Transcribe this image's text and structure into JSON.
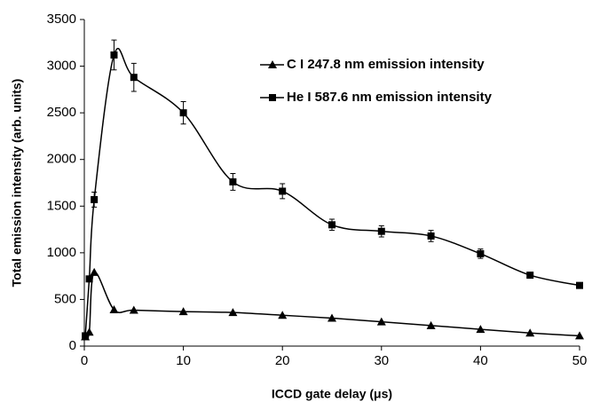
{
  "chart_data": {
    "type": "scatter",
    "x_label": "ICCD gate delay (μs)",
    "y_label": "Total emission intensity (arb. units)",
    "x": [
      0.1,
      0.5,
      1,
      3,
      5,
      10,
      15,
      20,
      25,
      30,
      35,
      40,
      45,
      50
    ],
    "series": [
      {
        "name": "C I 247.8 nm emission intensity",
        "color": "#000000",
        "marker": "triangle",
        "values": [
          100,
          150,
          790,
          390,
          385,
          370,
          360,
          330,
          300,
          260,
          220,
          180,
          140,
          110
        ]
      },
      {
        "name": "He I 587.6 nm emission intensity",
        "color": "#000000",
        "marker": "square",
        "values": [
          110,
          720,
          1570,
          3120,
          2880,
          2500,
          1760,
          1660,
          1300,
          1230,
          1180,
          990,
          760,
          650
        ],
        "errors": [
          10,
          30,
          80,
          160,
          150,
          120,
          90,
          80,
          60,
          60,
          60,
          50,
          30,
          20
        ]
      }
    ],
    "xlim": [
      0,
      50
    ],
    "xticks": [
      0,
      10,
      20,
      30,
      40,
      50
    ],
    "ylim": [
      0,
      3500
    ],
    "yticks": [
      0,
      500,
      1000,
      1500,
      2000,
      2500,
      3000,
      3500
    ],
    "grid": false,
    "legend": "upper right"
  }
}
